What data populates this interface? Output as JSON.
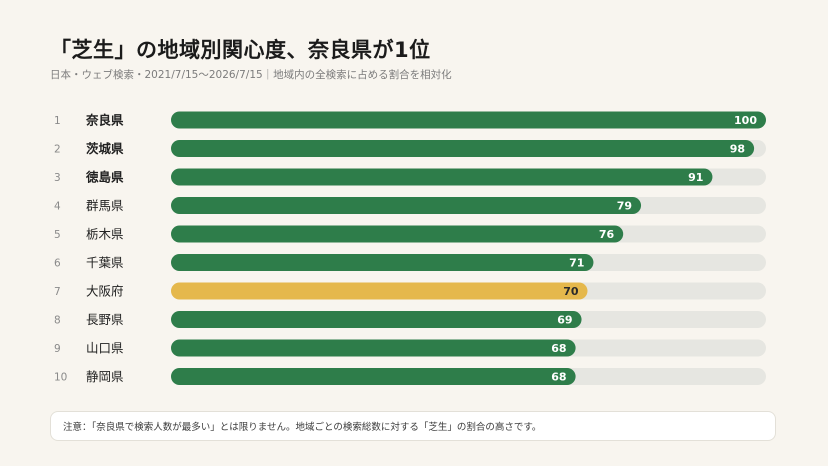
{
  "title": "「芝生」の地域別関心度、奈良県が1位",
  "subtitle": "日本・ウェブ検索・2021/7/15〜2026/7/15｜地域内の全検索に占める割合を相対化",
  "note": "注意：「奈良県で検索人数が最多い」とは限りません。地域ごとの検索総数に対する「芝生」の割合の高さです。",
  "colors": {
    "primary": "#2e7d4a",
    "highlight": "#e5b84c",
    "track": "#e6e6e1",
    "rank": "#8a8a8a",
    "label": "#222222"
  },
  "chart_data": {
    "type": "bar",
    "orientation": "horizontal",
    "xlim": [
      0,
      100
    ],
    "grid": false,
    "categories": [
      "奈良県",
      "茨城県",
      "徳島県",
      "群馬県",
      "栃木県",
      "千葉県",
      "大阪府",
      "長野県",
      "山口県",
      "静岡県"
    ],
    "ranks": [
      "1",
      "2",
      "3",
      "4",
      "5",
      "6",
      "7",
      "8",
      "9",
      "10"
    ],
    "values": [
      100,
      98,
      91,
      79,
      76,
      71,
      70,
      69,
      68,
      68
    ],
    "bold_categories": [
      "奈良県",
      "茨城県",
      "徳島県"
    ],
    "highlighted_category": "大阪府"
  }
}
